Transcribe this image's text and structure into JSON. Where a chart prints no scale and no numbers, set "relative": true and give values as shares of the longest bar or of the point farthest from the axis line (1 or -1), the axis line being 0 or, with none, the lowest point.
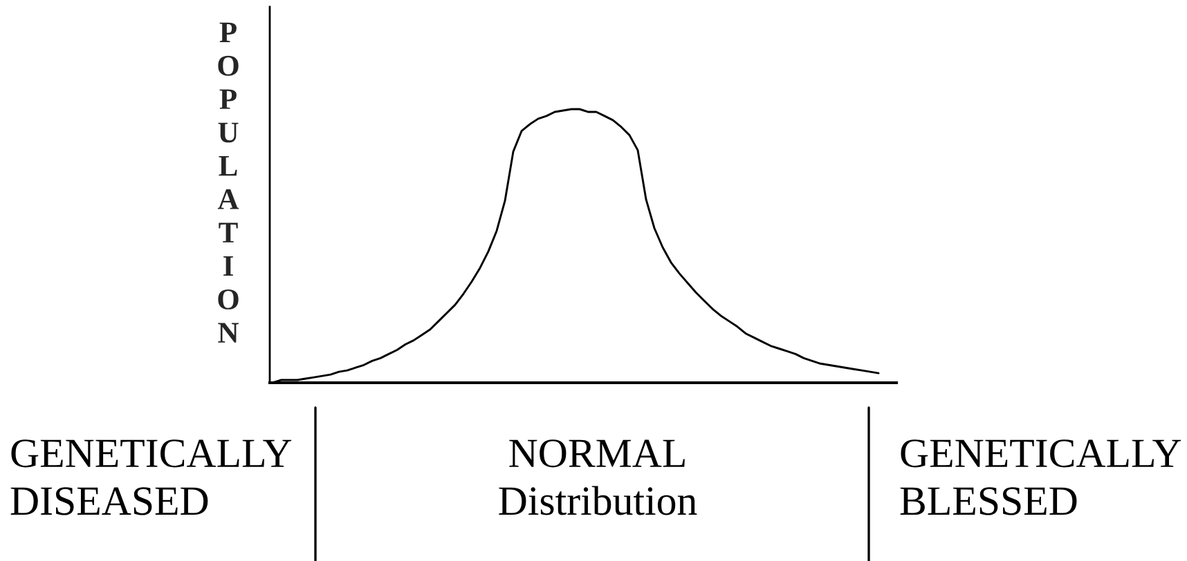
{
  "chart_data": {
    "type": "line",
    "relative": true,
    "ylabel": "POPULATION",
    "line_style": "solid",
    "categories": [
      null,
      null,
      null,
      null,
      null,
      null,
      null,
      null,
      null,
      null,
      null,
      null,
      null,
      null,
      null,
      null,
      null,
      null,
      null,
      null,
      null,
      null,
      null,
      null,
      null,
      null,
      null,
      null,
      null,
      null,
      null,
      null,
      null,
      null,
      null,
      null,
      null,
      null,
      null,
      null,
      null,
      null,
      null,
      null,
      null,
      null,
      null,
      null,
      null,
      null,
      null,
      null,
      null,
      null,
      null,
      null,
      null,
      null,
      null,
      null,
      null,
      null,
      null,
      null,
      null,
      null,
      null,
      null,
      null,
      null,
      null,
      null,
      null,
      null
    ],
    "series": [
      {
        "color": "#000000",
        "values": [
          0,
          0.01,
          0.01,
          0.01,
          0.015,
          0.02,
          0.025,
          0.03,
          0.04,
          0.045,
          0.055,
          0.065,
          0.08,
          0.09,
          0.105,
          0.12,
          0.14,
          0.155,
          0.175,
          0.195,
          0.225,
          0.255,
          0.285,
          0.325,
          0.37,
          0.42,
          0.48,
          0.555,
          0.665,
          0.845,
          0.92,
          0.945,
          0.965,
          0.975,
          0.99,
          0.995,
          1,
          1,
          0.99,
          0.99,
          0.975,
          0.96,
          0.935,
          0.905,
          0.85,
          0.67,
          0.565,
          0.495,
          0.44,
          0.4,
          0.365,
          0.33,
          0.3,
          0.27,
          0.245,
          0.225,
          0.205,
          0.18,
          0.165,
          0.15,
          0.135,
          0.125,
          0.115,
          0.105,
          0.09,
          0.08,
          0.07,
          0.065,
          0.06,
          0.055,
          0.05,
          0.045,
          0.04,
          0.035
        ]
      }
    ],
    "annotations": [
      "GENETICALLY\nDISEASED",
      "NORMAL\nDistribution",
      "GENETICALLY\nBLESSED"
    ]
  }
}
